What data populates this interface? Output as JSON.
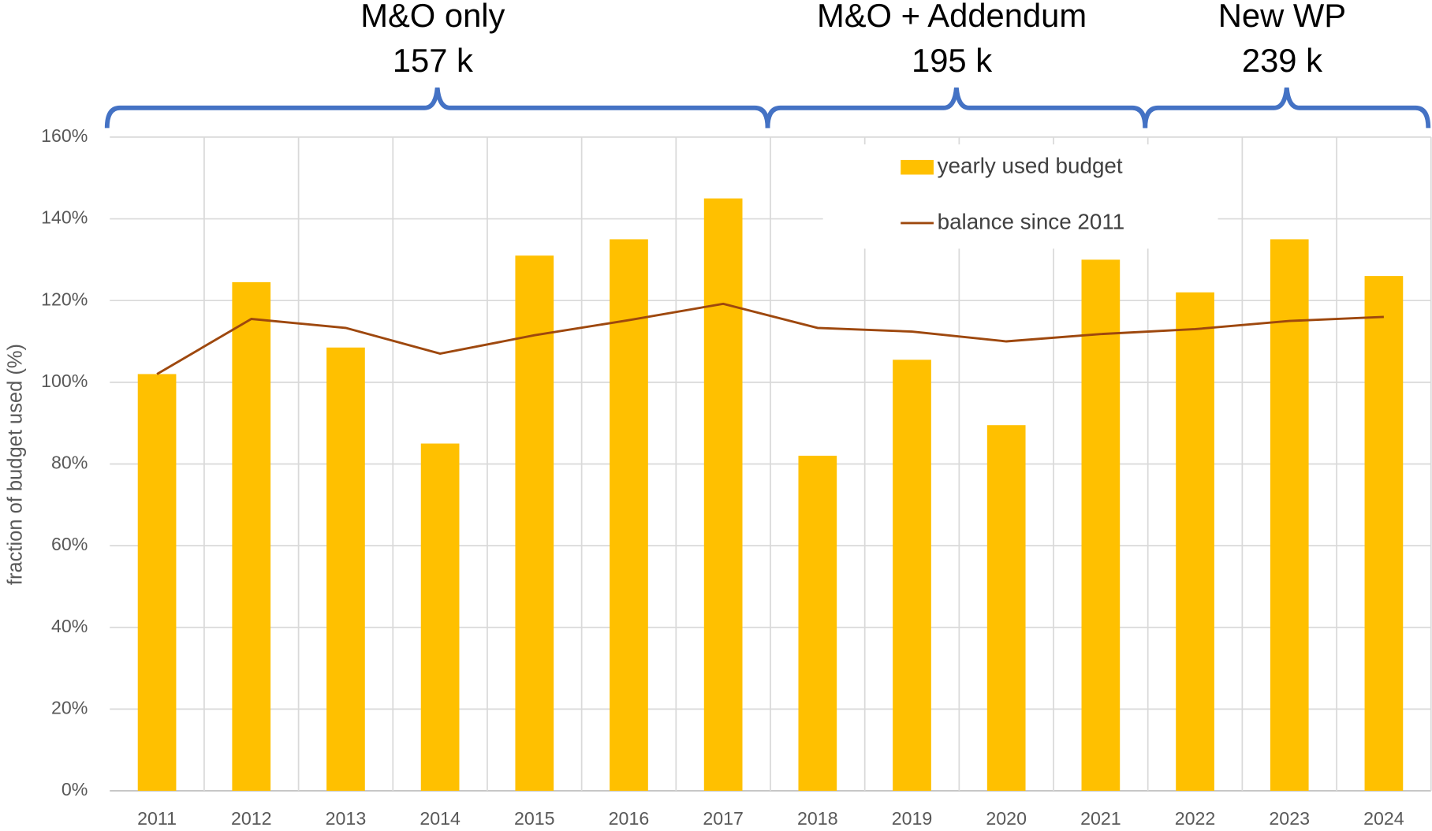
{
  "chart_data": {
    "type": "bar+line",
    "y_axis_label": "fraction of budget used (%)",
    "categories": [
      "2011",
      "2012",
      "2013",
      "2014",
      "2015",
      "2016",
      "2017",
      "2018",
      "2019",
      "2020",
      "2021",
      "2022",
      "2023",
      "2024"
    ],
    "series": [
      {
        "name": "yearly used budget",
        "type": "bar",
        "color": "#ffc000",
        "values": [
          102,
          124.5,
          108.5,
          85,
          131,
          135,
          145,
          82,
          105.5,
          89.5,
          130,
          122,
          135,
          126
        ]
      },
      {
        "name": "balance since 2011",
        "type": "line",
        "color": "#9e480e",
        "values": [
          102,
          115.5,
          113.3,
          107,
          111.5,
          115.2,
          119.2,
          113.3,
          112.4,
          110,
          111.8,
          113,
          115,
          116
        ]
      }
    ],
    "ylim": [
      0,
      160
    ],
    "yticks": [
      {
        "value": 0,
        "label": "0%"
      },
      {
        "value": 20,
        "label": "20%"
      },
      {
        "value": 40,
        "label": "40%"
      },
      {
        "value": 60,
        "label": "60%"
      },
      {
        "value": 80,
        "label": "80%"
      },
      {
        "value": 100,
        "label": "100%"
      },
      {
        "value": 120,
        "label": "120%"
      },
      {
        "value": 140,
        "label": "140%"
      },
      {
        "value": 160,
        "label": "160%"
      }
    ],
    "grid": true,
    "legend": "upper center",
    "groups": [
      {
        "label": "M&O only",
        "budget": "157 k",
        "first": "2011",
        "last": "2017"
      },
      {
        "label": "M&O + Addendum",
        "budget": "195 k",
        "first": "2018",
        "last": "2021"
      },
      {
        "label": "New WP",
        "budget": "239 k",
        "first": "2022",
        "last": "2024"
      }
    ]
  }
}
